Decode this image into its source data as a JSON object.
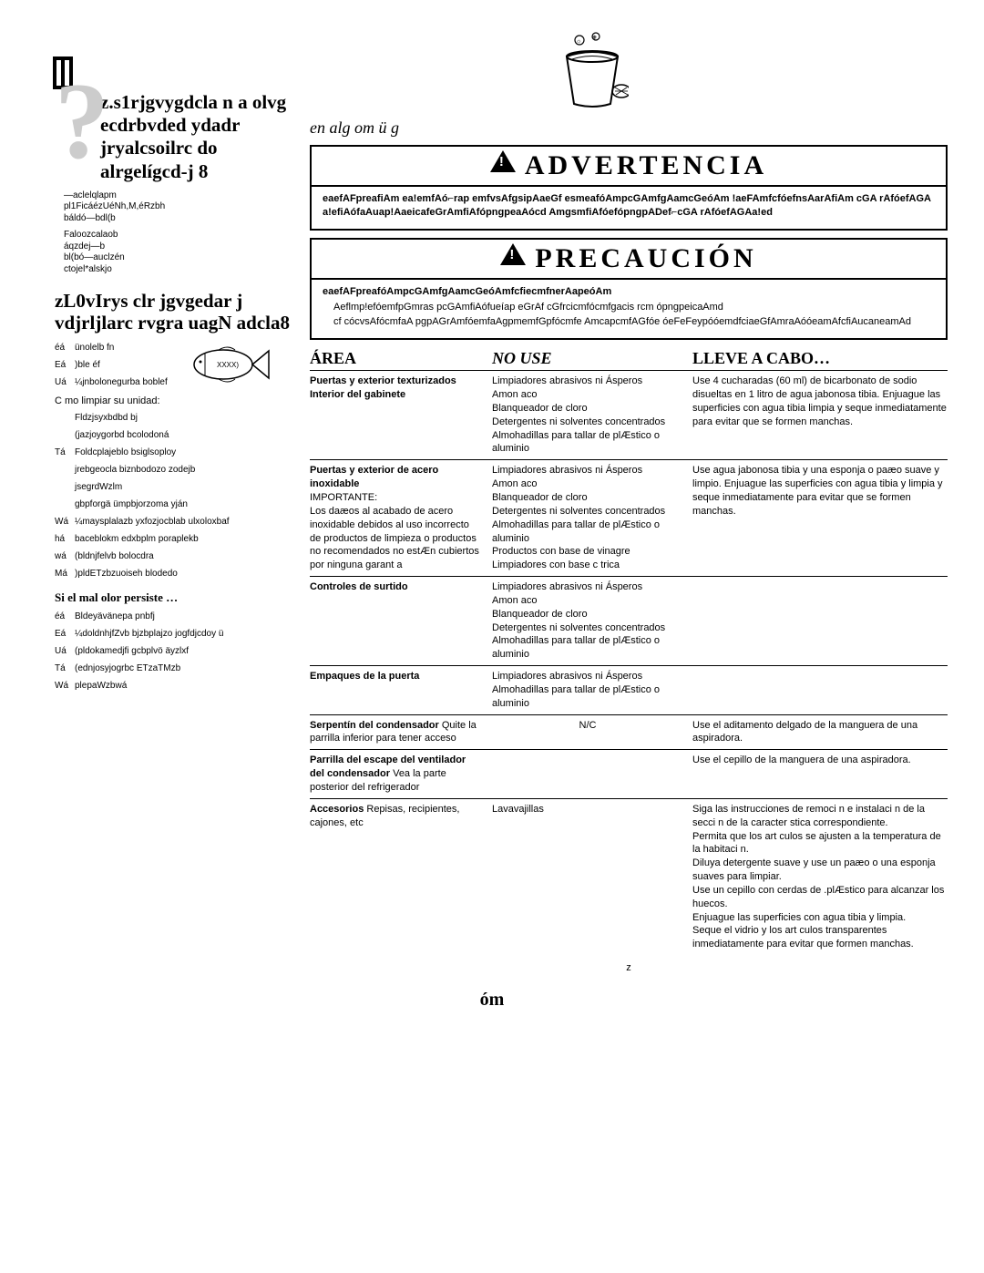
{
  "left": {
    "question_heading": "z.s1rjgvygdcla n a olvg ecdrbvded ydadr jryalcsoilrc do alrgelígcd-j 8",
    "para1": "—aclelqlapm\npl1FicáézUéNh,M,éRzbh\nbáldó—bdl(b",
    "para2": "Faloozcalaob\náqzdej—b\nbl(bó—auclzén\nctojel*alskjo",
    "tips_heading": "zL0vIrys clr jgvgedar j vdjrljlarc rvgra uagN adcla8",
    "rows1": [
      {
        "n": "éá",
        "t": "ünolelb fn"
      },
      {
        "n": "Eá",
        "t": ")ble éf"
      },
      {
        "n": "Uá",
        "t": "¼jnbolonegurba boblef"
      }
    ],
    "sub": "C mo limpiar su unidad:",
    "rows2": [
      {
        "n": "",
        "t": "Fldzjsyxbdbd bj"
      },
      {
        "n": "",
        "t": "(jazjoygorbd bcolodoná"
      },
      {
        "n": "Tá",
        "t": "Foldcplajeblo bsiglsoploy"
      },
      {
        "n": "",
        "t": "jrebgeocla biznbodozo zodejb"
      },
      {
        "n": "",
        "t": "jsegrdWzlm"
      },
      {
        "n": "",
        "t": "gbpforgä ümpbjorzoma yján"
      },
      {
        "n": "Wá",
        "t": "¼maysplalazb yxfozjocblab ulxoloxbaf"
      },
      {
        "n": "há",
        "t": "baceblokm edxbplm poraplekb"
      },
      {
        "n": "wá",
        "t": "(bldnjfelvb bolocdra"
      },
      {
        "n": "Má",
        "t": ")pldETzbzuoiseh blodedo"
      }
    ],
    "persist_heading": "Si el mal olor persiste …",
    "rows3": [
      {
        "n": "éá",
        "t": "Bldeyävänepa pnbfj"
      },
      {
        "n": "Eá",
        "t": "¼doldnhjfZvb bjzbplajzo jogfdjcdoy ü"
      },
      {
        "n": "Uá",
        "t": "(pldokamedjfi gcbplvö äyzlxf"
      },
      {
        "n": "Tá",
        "t": "(ednjosyjogrbc ETzaTMzb"
      },
      {
        "n": "Wá",
        "t": "plepaWzbwá"
      }
    ]
  },
  "right": {
    "hint": "en alg om ü g",
    "warn1": {
      "title": "ADVERTENCIA",
      "body": "eaefAFpreafiAm ea!emfAó⌐rap emfvsAfgsipAaeGf esmeafóAmpcGAmfgAamcGeóAm !aeFAmfcfóefnsAarAfiAm cGA rAfóefAGAa!efiAófaAuap!AaeicafeGrAmfiAfópngpeaAócd AmgsmfiAfóefópngpADef⌐cGA rAfóefAGAa!ed"
    },
    "warn2": {
      "title": "PRECAUCIÓN",
      "body": "eaefAFpreafóAmpcGAmfgAamcGeóAmfcfiecmfnerAapeóAm",
      "li1": "Aeflmp!efóemfpGmras pcGAmfiAófueíap eGrAf cGfrcicmfócmfgacis rcm ópngpeicaAmd",
      "li2": "cf cócvsAfócmfaA pgpAGrAmfóemfaAgpmemfGpfócmfe AmcapcmfAGfóe óeFeFeypóóemdfciaeGfAmraAóóeamAfcfiAucaneamAd"
    },
    "table": {
      "h1": "ÁREA",
      "h2": "NO USE",
      "h3": "LLEVE A CABO…",
      "rows": [
        {
          "area_bold": "Puertas y exterior texturizados",
          "area_bold2": "Interior del gabinete",
          "area_rest": "",
          "nouse": "Limpiadores abrasivos ni Ásperos\nAmon aco\nBlanqueador de cloro\nDetergentes ni solventes concentrados\nAlmohadillas para tallar de plÆstico o aluminio",
          "do": "Use 4 cucharadas (60 ml) de bicarbonato de sodio disueltas en 1 litro de agua jabonosa tibia. Enjuague las superficies con agua tibia limpia y seque inmediatamente para evitar que se formen manchas."
        },
        {
          "area_bold": "Puertas y exterior de acero inoxidable",
          "area_rest": "IMPORTANTE:\nLos daæos al acabado de acero inoxidable debidos al uso incorrecto de productos de limpieza o productos no recomendados no estÆn cubiertos por ninguna garant a",
          "nouse": "Limpiadores abrasivos ni Ásperos\nAmon aco\nBlanqueador de cloro\nDetergentes ni solventes concentrados\nAlmohadillas para tallar de plÆstico o aluminio\nProductos con base de vinagre\nLimpiadores con base c trica",
          "do": "Use agua jabonosa tibia y una esponja o paæo suave y limpio. Enjuague las superficies con agua tibia y limpia y seque inmediatamente para evitar que se formen manchas."
        },
        {
          "area_bold": "Controles de surtido",
          "area_rest": "",
          "nouse": "Limpiadores abrasivos ni Ásperos\nAmon aco\nBlanqueador de cloro\nDetergentes ni solventes concentrados\nAlmohadillas para tallar de plÆstico o aluminio",
          "do": ""
        },
        {
          "area_bold": "Empaques de la puerta",
          "area_rest": "",
          "nouse": "Limpiadores abrasivos ni Ásperos\nAlmohadillas para tallar de plÆstico o aluminio",
          "do": ""
        },
        {
          "area_bold": "Serpentín del condensador",
          "area_rest": "Quite la parrilla inferior para tener acceso",
          "nouse": "N/C",
          "do": "Use el aditamento delgado de la manguera de una aspiradora."
        },
        {
          "area_bold": "Parrilla del escape del ventilador del condensador",
          "area_rest": "Vea la parte posterior del refrigerador",
          "nouse": "",
          "do": "Use el cepillo de la manguera de una aspiradora."
        },
        {
          "area_bold": "Accesorios",
          "area_rest": "Repisas, recipientes, cajones, etc",
          "nouse": "Lavavajillas",
          "do": "Siga las instrucciones de remoci n e instalaci n de la secci n de la caracter stica correspondiente.\nPermita que los art culos se ajusten a la temperatura de la habitaci n.\nDiluya detergente suave y use un paæo o una esponja suaves para limpiar.\nUse un cepillo con cerdas de .plÆstico para alcanzar los huecos.\nEnjuague las superficies con agua tibia y limpia.\nSeque el vidrio y los art culos transparentes inmediatamente para evitar que formen manchas."
        }
      ]
    }
  },
  "footer": {
    "z": "z",
    "om": "óm"
  }
}
